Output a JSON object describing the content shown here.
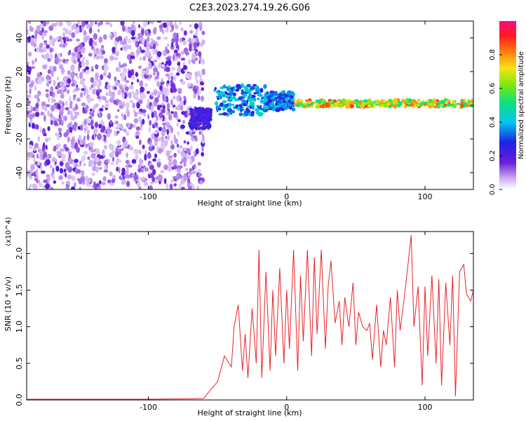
{
  "title": "C2E3.2023.274.19.26.G06",
  "colors": {
    "snr_line": "#e8222a",
    "axis": "#000000",
    "background": "#ffffff"
  },
  "chart_data": [
    {
      "type": "heatmap",
      "title": "C2E3.2023.274.19.26.G06",
      "xlabel": "Height of straight line (km)",
      "ylabel": "Frequency (Hz)",
      "xlim": [
        -188,
        135
      ],
      "ylim": [
        -50,
        50
      ],
      "x_ticks": [
        -100,
        0,
        100
      ],
      "y_ticks": [
        -40,
        -20,
        0,
        20,
        40
      ],
      "colorbar": {
        "label": "Normalized spectral amplitude",
        "range": [
          0.0,
          1.0
        ],
        "ticks": [
          0.0,
          0.2,
          0.4,
          0.6,
          0.8
        ],
        "colormap": "rainbow (white - violet - blue - cyan - green - yellow - red - magenta)"
      },
      "features": [
        {
          "region_x": [
            -188,
            -60
          ],
          "frequency_range": [
            -50,
            50
          ],
          "amplitude": "broad noise, ~0.1-0.3"
        },
        {
          "region_x": [
            -70,
            -55
          ],
          "frequency_range": [
            -14,
            -2
          ],
          "amplitude": "~0.25"
        },
        {
          "region_x": [
            -52,
            -15
          ],
          "frequency_range": [
            -6,
            12
          ],
          "amplitude": "~0.4-0.5, oscillating"
        },
        {
          "region_x": [
            -15,
            5
          ],
          "frequency_range": [
            -3,
            8
          ],
          "amplitude": "~0.4"
        },
        {
          "region_x": [
            5,
            135
          ],
          "frequency_range": [
            -1,
            3
          ],
          "amplitude": "~0.7-0.95, narrow line near 0-1 Hz"
        }
      ]
    },
    {
      "type": "line",
      "xlabel": "Height of straight line (km)",
      "ylabel": "SNR (10 * v/v)",
      "y_multiplier": "(x10^4)",
      "xlim": [
        -188,
        135
      ],
      "ylim": [
        0.0,
        2.3
      ],
      "x_ticks": [
        -100,
        0,
        100
      ],
      "y_ticks": [
        0.0,
        0.5,
        1.0,
        1.5,
        2.0
      ],
      "grid": false,
      "series": [
        {
          "x": [
            -188,
            -150,
            -100,
            -70,
            -60,
            -58,
            -50,
            -45,
            -40,
            -38,
            -35,
            -32,
            -30,
            -28,
            -25,
            -22,
            -20,
            -18,
            -15,
            -12,
            -10,
            -8,
            -5,
            -2,
            0,
            2,
            5,
            8,
            10,
            12,
            15,
            18,
            20,
            22,
            25,
            28,
            30,
            32,
            35,
            38,
            40,
            42,
            45,
            48,
            50,
            52,
            55,
            58,
            60,
            62,
            65,
            68,
            70,
            72,
            75,
            78,
            80,
            82,
            85,
            88,
            90,
            92,
            95,
            98,
            100,
            102,
            105,
            108,
            110,
            112,
            115,
            118,
            120,
            122,
            125,
            128,
            130,
            133,
            135
          ],
          "y": [
            0.01,
            0.01,
            0.01,
            0.015,
            0.02,
            0.07,
            0.25,
            0.6,
            0.45,
            1.0,
            1.3,
            0.4,
            0.9,
            0.3,
            1.25,
            0.5,
            2.05,
            0.3,
            1.75,
            0.4,
            1.5,
            0.6,
            1.8,
            0.5,
            1.5,
            0.7,
            2.05,
            0.4,
            1.7,
            0.8,
            2.05,
            0.6,
            1.95,
            0.9,
            2.05,
            0.7,
            1.55,
            1.9,
            1.05,
            1.35,
            0.75,
            1.4,
            1.0,
            1.6,
            0.75,
            1.2,
            1.0,
            0.95,
            1.05,
            0.55,
            1.3,
            0.45,
            0.95,
            0.75,
            1.4,
            0.45,
            1.5,
            0.95,
            1.4,
            1.9,
            2.25,
            1.0,
            1.55,
            0.2,
            1.55,
            0.6,
            1.7,
            0.5,
            1.65,
            0.2,
            1.6,
            0.75,
            1.7,
            0.05,
            1.75,
            1.85,
            1.45,
            1.35,
            1.5
          ]
        }
      ]
    }
  ]
}
